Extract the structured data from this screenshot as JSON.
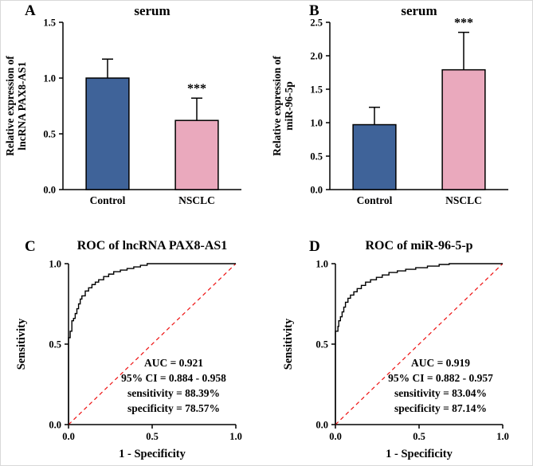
{
  "figure": {
    "background": "#ffffff",
    "curve_color": "#000000",
    "diagonal_color": "#ee1111",
    "axis_color": "#000000"
  },
  "chart_data": [
    {
      "panel_label": "A",
      "type": "bar",
      "title": "serum",
      "ylabel_lines": [
        "Relative expression of",
        "lncRNA PAX8-AS1"
      ],
      "categories": [
        "Control",
        "NSCLC"
      ],
      "values": [
        1.0,
        0.62
      ],
      "errors_up": [
        0.17,
        0.2
      ],
      "significance": [
        "",
        "***"
      ],
      "bar_fill_colors": [
        "#3f6399",
        "#eaa9bd"
      ],
      "bar_edge_color": "#000000",
      "ylim": [
        0,
        1.5
      ],
      "ytick_step": 0.5,
      "grid": false
    },
    {
      "panel_label": "B",
      "type": "bar",
      "title": "serum",
      "ylabel_lines": [
        "Relative expression of",
        "miR-96-5p"
      ],
      "categories": [
        "Control",
        "NSCLC"
      ],
      "values": [
        0.97,
        1.79
      ],
      "errors_up": [
        0.26,
        0.56
      ],
      "significance": [
        "",
        "***"
      ],
      "bar_fill_colors": [
        "#3f6399",
        "#eaa9bd"
      ],
      "bar_edge_color": "#000000",
      "ylim": [
        0,
        2.5
      ],
      "ytick_step": 0.5,
      "grid": false
    },
    {
      "panel_label": "C",
      "type": "line",
      "subtype": "roc",
      "title": "ROC of lncRNA PAX8-AS1",
      "xlabel": "1 - Specificity",
      "ylabel": "Sensitivity",
      "xlim": [
        0,
        1
      ],
      "ylim": [
        0,
        1
      ],
      "xticks": [
        0,
        0.5,
        1
      ],
      "yticks": [
        0,
        0.5,
        1
      ],
      "grid": false,
      "diagonal": true,
      "roc_points": [
        [
          0,
          0
        ],
        [
          0,
          0.54
        ],
        [
          0.01,
          0.58
        ],
        [
          0.02,
          0.61
        ],
        [
          0.02,
          0.645
        ],
        [
          0.03,
          0.66
        ],
        [
          0.04,
          0.69
        ],
        [
          0.05,
          0.72
        ],
        [
          0.06,
          0.75
        ],
        [
          0.07,
          0.78
        ],
        [
          0.08,
          0.8
        ],
        [
          0.1,
          0.83
        ],
        [
          0.12,
          0.85
        ],
        [
          0.14,
          0.87
        ],
        [
          0.16,
          0.885
        ],
        [
          0.18,
          0.9
        ],
        [
          0.21,
          0.92
        ],
        [
          0.24,
          0.935
        ],
        [
          0.27,
          0.95
        ],
        [
          0.31,
          0.96
        ],
        [
          0.35,
          0.97
        ],
        [
          0.39,
          0.98
        ],
        [
          0.43,
          0.99
        ],
        [
          0.47,
          1.0
        ],
        [
          1,
          1
        ]
      ],
      "annotations": [
        "AUC = 0.921",
        "95% CI = 0.884 - 0.958",
        "sensitivity = 88.39%",
        "specificity = 78.57%"
      ]
    },
    {
      "panel_label": "D",
      "type": "line",
      "subtype": "roc",
      "title": "ROC of miR-96-5-p",
      "xlabel": "1 - Specificity",
      "ylabel": "Sensitivity",
      "xlim": [
        0,
        1
      ],
      "ylim": [
        0,
        1
      ],
      "xticks": [
        0,
        0.5,
        1
      ],
      "yticks": [
        0,
        0.5,
        1
      ],
      "grid": false,
      "diagonal": true,
      "roc_points": [
        [
          0,
          0
        ],
        [
          0,
          0.58
        ],
        [
          0.015,
          0.61
        ],
        [
          0.02,
          0.645
        ],
        [
          0.03,
          0.67
        ],
        [
          0.04,
          0.7
        ],
        [
          0.05,
          0.73
        ],
        [
          0.06,
          0.76
        ],
        [
          0.075,
          0.785
        ],
        [
          0.09,
          0.805
        ],
        [
          0.11,
          0.825
        ],
        [
          0.13,
          0.845
        ],
        [
          0.155,
          0.865
        ],
        [
          0.18,
          0.885
        ],
        [
          0.21,
          0.9
        ],
        [
          0.245,
          0.915
        ],
        [
          0.28,
          0.93
        ],
        [
          0.32,
          0.945
        ],
        [
          0.37,
          0.955
        ],
        [
          0.42,
          0.965
        ],
        [
          0.48,
          0.975
        ],
        [
          0.55,
          0.985
        ],
        [
          0.62,
          0.995
        ],
        [
          0.68,
          1.0
        ],
        [
          1,
          1
        ]
      ],
      "annotations": [
        "AUC = 0.919",
        "95% CI = 0.882 - 0.957",
        "sensitivity = 83.04%",
        "specificity = 87.14%"
      ]
    }
  ]
}
